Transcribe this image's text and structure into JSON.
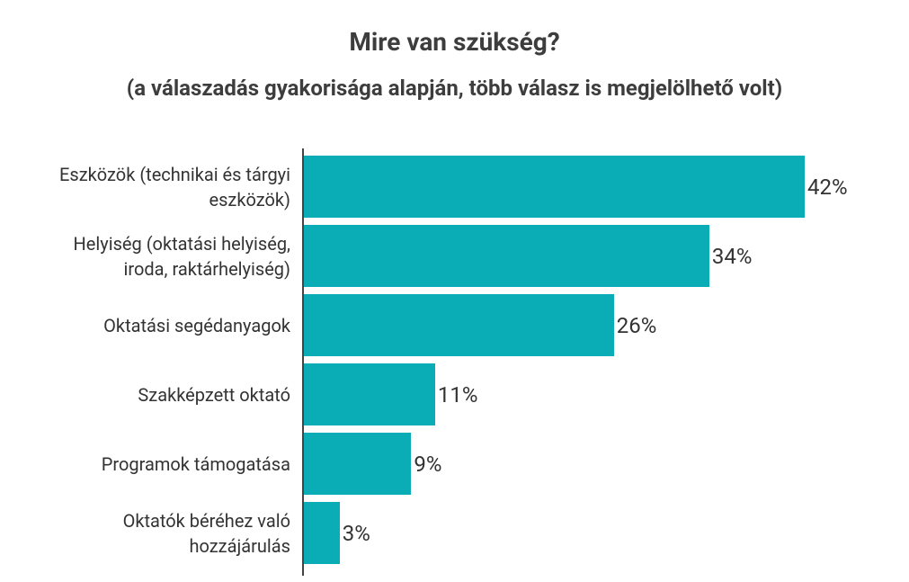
{
  "chart_data": {
    "type": "barh",
    "title": "Mire van szükség?",
    "subtitle": "(a válaszadás gyakorisága alapján, több válasz is megjelölhető volt)",
    "categories": [
      "Eszközök (technikai és tárgyi\neszközök)",
      "Helyiség (oktatási helyiség,\niroda, raktárhelyiség)",
      "Oktatási segédanyagok",
      "Szakképzett oktató",
      "Programok támogatása",
      "Oktatók béréhez való\nhozzájárulás"
    ],
    "values": [
      42,
      34,
      26,
      11,
      9,
      3
    ],
    "value_labels": [
      "42%",
      "34%",
      "26%",
      "11%",
      "9%",
      "3%"
    ],
    "color": "#0aadb6"
  }
}
